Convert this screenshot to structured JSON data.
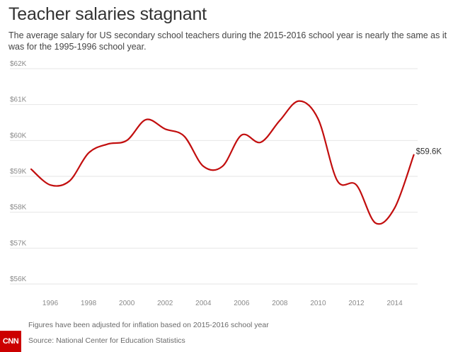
{
  "header": {
    "title": "Teacher salaries stagnant",
    "subtitle": "The average salary for US secondary school teachers during the 2015-2016 school year is nearly the same as it was for the 1995-1996 school year."
  },
  "footer": {
    "note": "Figures have been adjusted for inflation based on 2015-2016 school year",
    "source": "Source: National Center for Education Statistics",
    "logo_text": "CNN"
  },
  "colors": {
    "line": "#c20e0e",
    "grid": "#e6e6e6",
    "logo": "#cc0000"
  },
  "chart_data": {
    "type": "line",
    "title": "Teacher salaries stagnant",
    "xlabel": "",
    "ylabel": "",
    "xlim": [
      1995,
      2015.2
    ],
    "ylim": [
      56000,
      62000
    ],
    "x_ticks": [
      1996,
      1998,
      2000,
      2002,
      2004,
      2006,
      2008,
      2010,
      2012,
      2014
    ],
    "x_tick_labels": [
      "1996",
      "1998",
      "2000",
      "2002",
      "2004",
      "2006",
      "2008",
      "2010",
      "2012",
      "2014"
    ],
    "y_ticks": [
      56000,
      57000,
      58000,
      59000,
      60000,
      61000,
      62000
    ],
    "y_tick_labels": [
      "$56K",
      "$57K",
      "$58K",
      "$59K",
      "$60K",
      "$61K",
      "$62K"
    ],
    "grid": true,
    "series": [
      {
        "x": [
          1995,
          1996,
          1997,
          1998,
          1999,
          2000,
          2001,
          2002,
          2003,
          2004,
          2005,
          2006,
          2007,
          2008,
          2009,
          2010,
          2011,
          2012,
          2013,
          2014,
          2015
        ],
        "values": [
          59200,
          58760,
          58870,
          59650,
          59900,
          60000,
          60580,
          60320,
          60120,
          59280,
          59280,
          60150,
          59950,
          60560,
          61100,
          60600,
          58880,
          58760,
          57700,
          58120,
          59600
        ]
      }
    ],
    "annotations": [
      {
        "x": 2015,
        "y": 59600,
        "text": "$59.6K"
      }
    ]
  }
}
